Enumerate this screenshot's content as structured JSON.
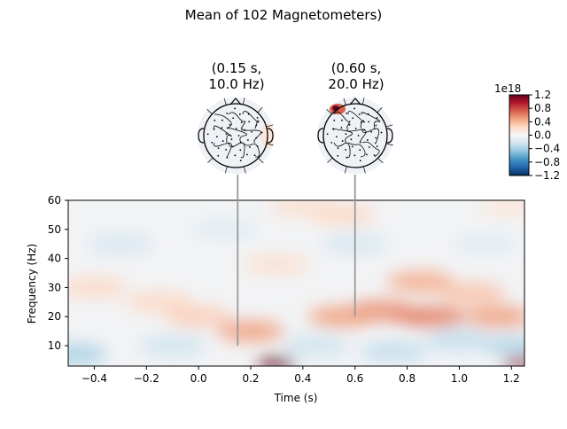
{
  "chart_data": {
    "type": "heatmap",
    "title": "Mean of 102 Magnetometers)",
    "xlabel": "Time (s)",
    "ylabel": "Frequency (Hz)",
    "xlim": [
      -0.5,
      1.25
    ],
    "ylim": [
      3,
      60
    ],
    "xticks": [
      -0.4,
      -0.2,
      0.0,
      0.2,
      0.4,
      0.6,
      0.8,
      1.0,
      1.2
    ],
    "xtick_labels": [
      "−0.4",
      "−0.2",
      "0.0",
      "0.2",
      "0.4",
      "0.6",
      "0.8",
      "1.0",
      "1.2"
    ],
    "yticks": [
      10,
      20,
      30,
      40,
      50,
      60
    ],
    "ytick_labels": [
      "10",
      "20",
      "30",
      "40",
      "50",
      "60"
    ],
    "colormap": "RdBu_r",
    "colorbar": {
      "range": [
        -1.2,
        1.2
      ],
      "exponent_label": "1e18",
      "ticks": [
        1.2,
        0.8,
        0.4,
        0.0,
        -0.4,
        -0.8,
        -1.2
      ],
      "tick_labels": [
        "1.2",
        "0.8",
        "0.4",
        "0.0",
        "−0.4",
        "−0.8",
        "−1.2"
      ]
    },
    "blobs": [
      {
        "t": 0.3,
        "f": 4.0,
        "value": 1.2
      },
      {
        "t": 1.24,
        "f": 4.0,
        "value": 1.0
      },
      {
        "t": 0.8,
        "f": 20.0,
        "value": 0.9
      },
      {
        "t": 0.9,
        "f": 20.0,
        "value": 0.6
      },
      {
        "t": 0.7,
        "f": 22.0,
        "value": 0.55
      },
      {
        "t": 1.15,
        "f": 20.0,
        "value": 0.5
      },
      {
        "t": 0.55,
        "f": 20.0,
        "value": 0.5
      },
      {
        "t": 0.85,
        "f": 32.0,
        "value": 0.45
      },
      {
        "t": 1.05,
        "f": 28.0,
        "value": 0.35
      },
      {
        "t": 0.2,
        "f": 15.0,
        "value": 0.5
      },
      {
        "t": 0.0,
        "f": 20.0,
        "value": 0.3
      },
      {
        "t": -0.15,
        "f": 25.0,
        "value": 0.25
      },
      {
        "t": -0.4,
        "f": 30.0,
        "value": 0.25
      },
      {
        "t": 0.3,
        "f": 38.0,
        "value": 0.2
      },
      {
        "t": 0.55,
        "f": 55.0,
        "value": 0.25
      },
      {
        "t": 0.4,
        "f": 58.0,
        "value": 0.2
      },
      {
        "t": 1.2,
        "f": 58.0,
        "value": 0.15
      },
      {
        "t": -0.48,
        "f": 7.0,
        "value": -0.4
      },
      {
        "t": -0.3,
        "f": 45.0,
        "value": -0.2
      },
      {
        "t": -0.1,
        "f": 10.0,
        "value": -0.25
      },
      {
        "t": 0.45,
        "f": 10.0,
        "value": -0.25
      },
      {
        "t": 0.75,
        "f": 8.0,
        "value": -0.3
      },
      {
        "t": 1.0,
        "f": 12.0,
        "value": -0.3
      },
      {
        "t": 1.1,
        "f": 45.0,
        "value": -0.15
      },
      {
        "t": 0.6,
        "f": 45.0,
        "value": -0.2
      },
      {
        "t": 0.1,
        "f": 50.0,
        "value": -0.15
      },
      {
        "t": 1.22,
        "f": 10.0,
        "value": -0.35
      }
    ],
    "topomaps": [
      {
        "label": "(0.15 s,\n10.0 Hz)",
        "t": 0.15,
        "f": 10.0
      },
      {
        "label": "(0.60 s,\n20.0 Hz)",
        "t": 0.6,
        "f": 20.0
      }
    ]
  }
}
